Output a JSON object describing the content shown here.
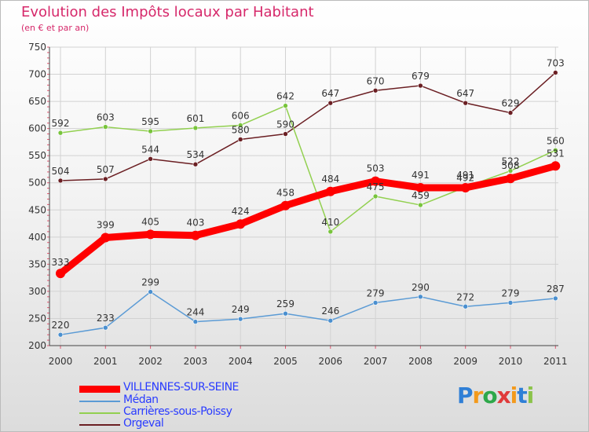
{
  "header": {
    "title": "Evolution des Impôts locaux par Habitant",
    "subtitle": "(en € et par an)"
  },
  "chart_data": {
    "type": "line",
    "x": [
      "2000",
      "2001",
      "2002",
      "2003",
      "2004",
      "2005",
      "2006",
      "2007",
      "2008",
      "2009",
      "2010",
      "2011"
    ],
    "ylim": [
      200,
      750
    ],
    "yticks": [
      200,
      250,
      300,
      350,
      400,
      450,
      500,
      550,
      600,
      650,
      700,
      750
    ],
    "grid": true,
    "series": [
      {
        "name": "Orgeval",
        "color": "#6b1f23",
        "values": [
          504,
          507,
          544,
          534,
          580,
          590,
          647,
          670,
          679,
          647,
          629,
          703
        ]
      },
      {
        "name": "Carrières-sous-Poissy",
        "color": "#92d050",
        "marker": "#78c43c",
        "values": [
          592,
          603,
          595,
          601,
          606,
          642,
          410,
          475,
          459,
          492,
          522,
          560
        ]
      },
      {
        "name": "Médan",
        "color": "#5b9bd5",
        "marker": "#4a8fcf",
        "values": [
          220,
          233,
          299,
          244,
          249,
          259,
          246,
          279,
          290,
          272,
          279,
          287
        ]
      },
      {
        "name": "VILLENNES-SUR-SEINE",
        "color": "#ff0000",
        "values": [
          333,
          399,
          405,
          403,
          424,
          458,
          484,
          503,
          491,
          491,
          508,
          531
        ]
      }
    ]
  },
  "legend": {
    "items": [
      {
        "label": "VILLENNES-SUR-SEINE",
        "color": "#ff0000"
      },
      {
        "label": "Médan",
        "color": "#5b9bd5"
      },
      {
        "label": "Carrières-sous-Poissy",
        "color": "#92d050"
      },
      {
        "label": "Orgeval",
        "color": "#6b1f23"
      }
    ]
  },
  "logo": {
    "letters": [
      "P",
      "r",
      "o",
      "x",
      "i",
      "t",
      "i"
    ],
    "colors": [
      "#2f7fd6",
      "#f39a1c",
      "#2ea84a",
      "#e03a3a",
      "#f39a1c",
      "#2f7fd6",
      "#8bc34a"
    ]
  }
}
